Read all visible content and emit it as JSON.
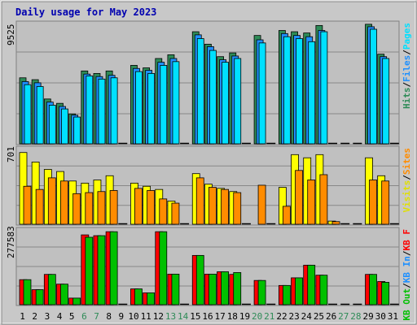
{
  "title": "Daily usage for May 2023",
  "colors": {
    "background": "#c0c0c0",
    "frame": "#d4d4d4",
    "title": "#0000b0",
    "hits": "#2e8b57",
    "files": "#1e90ff",
    "pages": "#00e0ff",
    "visits": "#ffff00",
    "sites": "#ff8c00",
    "kb_f": "#ff0000",
    "kb_in": "#1e90ff",
    "kb_out": "#00c000",
    "day_weekday": "#000000",
    "day_weekend": "#2e8b57"
  },
  "legends": {
    "top": [
      {
        "label": "Hits",
        "color": "#2e8b57"
      },
      {
        "label": "Files",
        "color": "#1e90ff"
      },
      {
        "label": "Pages",
        "color": "#00e0ff"
      }
    ],
    "middle": [
      {
        "label": "Visits",
        "color": "#e0e000"
      },
      {
        "label": "Sites",
        "color": "#ff8c00"
      }
    ],
    "bottom": [
      {
        "label": "KB Out",
        "color": "#00c000"
      },
      {
        "label": "KB In",
        "color": "#1e90ff"
      },
      {
        "label": "KB F",
        "color": "#ff0000"
      }
    ]
  },
  "separator": "/",
  "y_max_labels": {
    "top": "9525",
    "middle": "701",
    "bottom": "277583"
  },
  "chart_data": {
    "type": "bar",
    "title": "Daily usage for May 2023",
    "categories": [
      "1",
      "2",
      "3",
      "4",
      "5",
      "6",
      "7",
      "8",
      "9",
      "10",
      "11",
      "12",
      "13",
      "14",
      "15",
      "16",
      "17",
      "18",
      "19",
      "20",
      "21",
      "22",
      "23",
      "24",
      "25",
      "26",
      "27",
      "28",
      "29",
      "30",
      "31"
    ],
    "weekend_days": [
      6,
      7,
      13,
      14,
      20,
      21,
      27,
      28
    ],
    "panels": [
      {
        "name": "top",
        "ymax": 9525,
        "series": [
          {
            "name": "Hits",
            "values": [
              5300,
              5150,
              3600,
              3250,
              2400,
              5850,
              5650,
              5850,
              0,
              6300,
              6100,
              6850,
              7150,
              0,
              9000,
              8000,
              7000,
              7300,
              0,
              8700,
              0,
              9100,
              9000,
              8900,
              9500,
              0,
              0,
              0,
              9600,
              7200,
              0
            ]
          },
          {
            "name": "Files",
            "values": [
              5000,
              4900,
              3350,
              3000,
              2300,
              5600,
              5400,
              5500,
              0,
              6050,
              5900,
              6550,
              6850,
              0,
              8750,
              7800,
              6750,
              7050,
              0,
              8350,
              0,
              8850,
              8700,
              8600,
              9100,
              0,
              0,
              0,
              9400,
              7000,
              0
            ]
          },
          {
            "name": "Pages",
            "values": [
              4750,
              4600,
              3100,
              2800,
              2150,
              5450,
              5200,
              5300,
              0,
              5800,
              5650,
              6300,
              6600,
              0,
              8450,
              7500,
              6550,
              6850,
              0,
              8100,
              0,
              8600,
              8450,
              8200,
              9000,
              0,
              0,
              0,
              9200,
              6850,
              0
            ]
          }
        ]
      },
      {
        "name": "middle",
        "ymax": 701,
        "series": [
          {
            "name": "Visits",
            "values": [
              680,
              590,
              520,
              500,
              410,
              390,
              420,
              460,
              0,
              390,
              360,
              330,
              220,
              0,
              480,
              380,
              340,
              310,
              0,
              0,
              0,
              350,
              660,
              630,
              660,
              30,
              0,
              0,
              630,
              460,
              0
            ]
          },
          {
            "name": "Sites",
            "values": [
              360,
              330,
              440,
              410,
              290,
              300,
              310,
              320,
              0,
              340,
              320,
              240,
              200,
              0,
              440,
              350,
              330,
              300,
              0,
              370,
              0,
              170,
              510,
              420,
              470,
              25,
              0,
              0,
              420,
              410,
              0
            ]
          }
        ]
      },
      {
        "name": "bottom",
        "ymax": 277583,
        "series": [
          {
            "name": "KB F",
            "values": [
              95000,
              57000,
              115000,
              78000,
              25000,
              265000,
              262000,
              277000,
              0,
              60000,
              45000,
              277000,
              116000,
              0,
              187000,
              116000,
              125000,
              115000,
              0,
              92000,
              0,
              73000,
              102000,
              150000,
              112000,
              0,
              0,
              0,
              115000,
              88000,
              0
            ]
          },
          {
            "name": "KB Out",
            "values": [
              95000,
              57000,
              115000,
              78000,
              25000,
              256000,
              262000,
              277000,
              0,
              60000,
              45000,
              277000,
              116000,
              0,
              187000,
              116000,
              125000,
              122000,
              0,
              92000,
              0,
              73000,
              102000,
              150000,
              112000,
              0,
              0,
              0,
              115000,
              85000,
              0
            ]
          }
        ]
      }
    ]
  }
}
